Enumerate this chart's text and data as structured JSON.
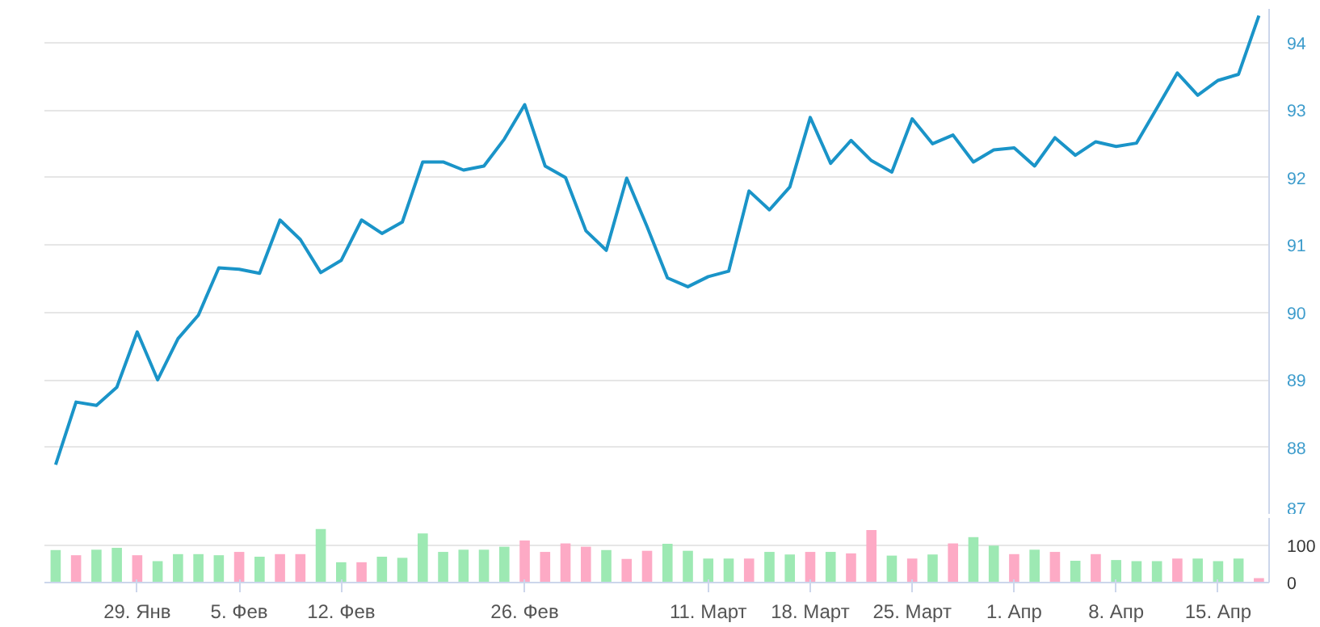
{
  "chart_data": [
    {
      "type": "line",
      "categories": [
        null,
        null,
        null,
        null,
        null,
        null,
        null,
        null,
        null,
        null,
        null,
        null,
        null,
        null,
        null,
        null,
        null,
        null,
        null,
        null,
        null,
        null,
        null,
        null,
        null,
        null,
        null,
        null,
        null,
        null,
        null,
        null,
        null,
        null,
        null,
        null,
        null,
        null,
        null,
        null,
        null,
        null,
        null,
        null,
        null,
        null,
        null,
        null,
        null,
        null,
        null,
        null,
        null,
        null,
        null,
        null,
        null,
        null,
        null,
        null
      ],
      "series": [
        {
          "color": "#1a94c8",
          "values": [
            87.74,
            88.67,
            88.62,
            88.89,
            89.71,
            89.0,
            89.61,
            89.96,
            90.66,
            90.64,
            90.58,
            91.37,
            91.08,
            90.59,
            90.77,
            91.37,
            91.17,
            91.34,
            92.23,
            92.23,
            92.11,
            92.17,
            92.57,
            93.08,
            92.17,
            92.0,
            91.21,
            90.92,
            91.99,
            91.27,
            90.51,
            90.38,
            90.53,
            90.61,
            91.8,
            91.52,
            91.86,
            92.89,
            92.21,
            92.55,
            92.25,
            92.08,
            92.87,
            92.5,
            92.63,
            92.23,
            92.41,
            92.44,
            92.17,
            92.59,
            92.33,
            92.53,
            92.46,
            92.51,
            93.03,
            93.55,
            93.22,
            93.44,
            93.53,
            94.4
          ]
        }
      ],
      "ylim": [
        87,
        94.5
      ],
      "yticks": [
        87,
        88,
        89,
        90,
        91,
        92,
        93,
        94
      ],
      "grid": "y",
      "tick_labels": "y",
      "line_style": "solid"
    },
    {
      "type": "bar",
      "categories": [
        null,
        null,
        null,
        null,
        "29. Янв",
        null,
        null,
        null,
        null,
        "5. Фев",
        null,
        null,
        null,
        null,
        "12. Фев",
        null,
        null,
        null,
        null,
        null,
        null,
        null,
        null,
        "26. Фев",
        null,
        null,
        null,
        null,
        null,
        null,
        null,
        null,
        "11. Март",
        null,
        null,
        null,
        null,
        "18. Март",
        null,
        null,
        null,
        null,
        "25. Март",
        null,
        null,
        null,
        null,
        "1. Апр",
        null,
        null,
        null,
        null,
        "8. Апр",
        null,
        null,
        null,
        null,
        "15. Апр",
        null,
        null
      ],
      "values": [
        88,
        74,
        89,
        94,
        74,
        58,
        77,
        77,
        74,
        83,
        70,
        77,
        77,
        145,
        55,
        55,
        70,
        67,
        133,
        83,
        89,
        89,
        97,
        114,
        83,
        106,
        97,
        88,
        64,
        86,
        105,
        86,
        65,
        65,
        65,
        83,
        76,
        83,
        83,
        79,
        142,
        73,
        65,
        76,
        106,
        123,
        100,
        77,
        89,
        83,
        59,
        77,
        61,
        58,
        58,
        65,
        65,
        58,
        65,
        12
      ],
      "colors": [
        "#9de9b3",
        "#fdaac5",
        "#9de9b3",
        "#9de9b3",
        "#fdaac5",
        "#9de9b3",
        "#9de9b3",
        "#9de9b3",
        "#9de9b3",
        "#fdaac5",
        "#9de9b3",
        "#fdaac5",
        "#fdaac5",
        "#9de9b3",
        "#9de9b3",
        "#fdaac5",
        "#9de9b3",
        "#9de9b3",
        "#9de9b3",
        "#9de9b3",
        "#9de9b3",
        "#9de9b3",
        "#9de9b3",
        "#fdaac5",
        "#fdaac5",
        "#fdaac5",
        "#fdaac5",
        "#9de9b3",
        "#fdaac5",
        "#fdaac5",
        "#9de9b3",
        "#9de9b3",
        "#9de9b3",
        "#9de9b3",
        "#fdaac5",
        "#9de9b3",
        "#9de9b3",
        "#fdaac5",
        "#9de9b3",
        "#fdaac5",
        "#fdaac5",
        "#9de9b3",
        "#fdaac5",
        "#9de9b3",
        "#fdaac5",
        "#9de9b3",
        "#9de9b3",
        "#fdaac5",
        "#9de9b3",
        "#fdaac5",
        "#9de9b3",
        "#fdaac5",
        "#9de9b3",
        "#9de9b3",
        "#9de9b3",
        "#fdaac5",
        "#9de9b3",
        "#9de9b3",
        "#9de9b3",
        "#fdaac5"
      ],
      "ylim": [
        0,
        175
      ],
      "yticks": [
        0,
        100
      ],
      "grid": "y"
    }
  ]
}
